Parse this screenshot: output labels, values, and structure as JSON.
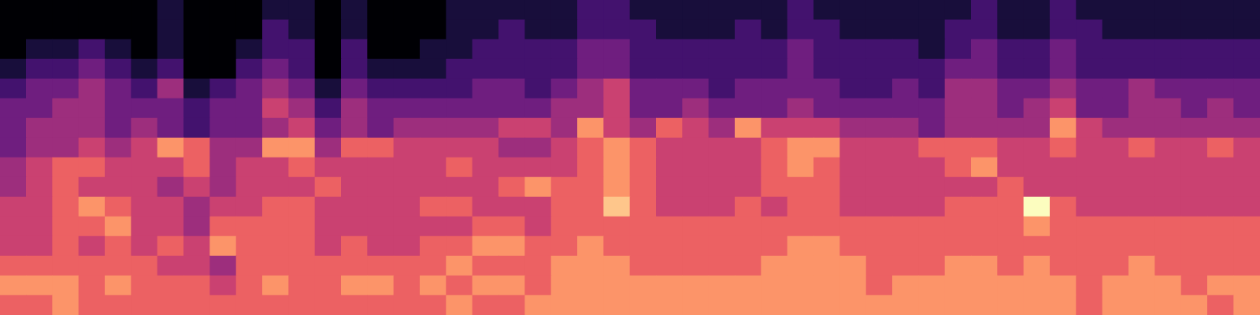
{
  "chart_data": {
    "type": "heatmap",
    "tick_labels": false,
    "grid": false,
    "zlim": [
      0,
      9
    ],
    "cells": [
      [
        0,
        0,
        0,
        0,
        0,
        0,
        1,
        0,
        0,
        0,
        1,
        1,
        0,
        1,
        0,
        0,
        0,
        1,
        1,
        1,
        1,
        1,
        2,
        2,
        1,
        1,
        1,
        1,
        1,
        1,
        2,
        1,
        1,
        1,
        1,
        1,
        1,
        2,
        1,
        1,
        2,
        1,
        1,
        1,
        1,
        1,
        1,
        1
      ],
      [
        0,
        0,
        0,
        0,
        0,
        0,
        1,
        0,
        0,
        0,
        2,
        1,
        0,
        1,
        0,
        0,
        0,
        1,
        1,
        2,
        1,
        1,
        2,
        2,
        2,
        1,
        1,
        1,
        2,
        1,
        2,
        2,
        1,
        1,
        1,
        1,
        2,
        2,
        1,
        1,
        2,
        2,
        1,
        1,
        1,
        1,
        1,
        1
      ],
      [
        0,
        1,
        1,
        2,
        1,
        0,
        1,
        0,
        0,
        1,
        2,
        2,
        0,
        2,
        0,
        0,
        1,
        1,
        2,
        2,
        2,
        2,
        3,
        3,
        2,
        2,
        2,
        2,
        2,
        2,
        3,
        2,
        2,
        2,
        2,
        1,
        2,
        3,
        2,
        2,
        3,
        2,
        2,
        2,
        2,
        2,
        2,
        2
      ],
      [
        1,
        2,
        2,
        3,
        2,
        1,
        2,
        0,
        0,
        2,
        3,
        2,
        0,
        2,
        1,
        1,
        1,
        2,
        2,
        2,
        2,
        2,
        3,
        3,
        2,
        2,
        2,
        2,
        2,
        2,
        3,
        2,
        2,
        2,
        2,
        2,
        3,
        3,
        2,
        2,
        3,
        2,
        2,
        2,
        2,
        2,
        2,
        2
      ],
      [
        2,
        3,
        3,
        4,
        3,
        2,
        4,
        1,
        2,
        3,
        4,
        3,
        1,
        3,
        2,
        2,
        2,
        2,
        3,
        3,
        2,
        3,
        4,
        5,
        3,
        3,
        3,
        2,
        3,
        3,
        3,
        3,
        2,
        2,
        3,
        2,
        4,
        4,
        3,
        3,
        4,
        3,
        3,
        4,
        3,
        3,
        3,
        3
      ],
      [
        3,
        3,
        4,
        4,
        3,
        3,
        3,
        2,
        3,
        3,
        5,
        4,
        2,
        4,
        3,
        3,
        3,
        3,
        3,
        3,
        3,
        4,
        4,
        5,
        3,
        3,
        4,
        3,
        3,
        3,
        4,
        3,
        3,
        3,
        3,
        3,
        4,
        4,
        3,
        4,
        5,
        3,
        3,
        4,
        4,
        3,
        4,
        3
      ],
      [
        3,
        4,
        4,
        4,
        3,
        4,
        3,
        2,
        3,
        3,
        4,
        5,
        3,
        4,
        3,
        4,
        4,
        4,
        4,
        5,
        5,
        4,
        7,
        5,
        4,
        6,
        5,
        4,
        7,
        5,
        5,
        5,
        4,
        4,
        4,
        3,
        4,
        4,
        4,
        4,
        7,
        5,
        4,
        4,
        4,
        4,
        4,
        4
      ],
      [
        3,
        4,
        4,
        5,
        4,
        5,
        7,
        6,
        4,
        4,
        7,
        7,
        4,
        6,
        6,
        5,
        5,
        5,
        5,
        4,
        4,
        5,
        6,
        7,
        6,
        5,
        5,
        5,
        5,
        6,
        7,
        7,
        5,
        5,
        5,
        6,
        6,
        6,
        5,
        5,
        6,
        5,
        5,
        6,
        5,
        5,
        6,
        5
      ],
      [
        4,
        5,
        6,
        6,
        5,
        5,
        5,
        6,
        4,
        5,
        5,
        6,
        5,
        5,
        5,
        5,
        5,
        6,
        5,
        5,
        5,
        5,
        6,
        7,
        6,
        5,
        5,
        5,
        5,
        6,
        7,
        6,
        5,
        5,
        5,
        5,
        6,
        7,
        5,
        5,
        5,
        5,
        5,
        5,
        5,
        5,
        5,
        5
      ],
      [
        4,
        5,
        6,
        5,
        5,
        5,
        4,
        5,
        4,
        5,
        5,
        5,
        6,
        5,
        5,
        5,
        5,
        5,
        5,
        6,
        7,
        6,
        6,
        7,
        6,
        5,
        5,
        5,
        5,
        6,
        6,
        6,
        5,
        5,
        5,
        5,
        5,
        5,
        6,
        5,
        5,
        5,
        5,
        5,
        5,
        5,
        5,
        5
      ],
      [
        5,
        5,
        6,
        7,
        6,
        5,
        5,
        4,
        5,
        5,
        6,
        6,
        5,
        5,
        5,
        5,
        6,
        6,
        5,
        5,
        5,
        6,
        6,
        8,
        6,
        5,
        5,
        5,
        6,
        5,
        6,
        6,
        5,
        5,
        5,
        5,
        6,
        6,
        6,
        9,
        6,
        5,
        5,
        5,
        5,
        5,
        5,
        5
      ],
      [
        5,
        5,
        6,
        6,
        7,
        5,
        5,
        4,
        6,
        6,
        6,
        6,
        5,
        5,
        5,
        5,
        5,
        5,
        6,
        6,
        5,
        6,
        6,
        6,
        6,
        6,
        6,
        6,
        6,
        6,
        6,
        6,
        6,
        6,
        6,
        6,
        6,
        6,
        6,
        7,
        6,
        6,
        6,
        6,
        6,
        6,
        6,
        6
      ],
      [
        5,
        5,
        6,
        5,
        6,
        5,
        6,
        5,
        7,
        6,
        6,
        6,
        5,
        6,
        5,
        5,
        6,
        6,
        7,
        7,
        6,
        6,
        7,
        6,
        6,
        6,
        6,
        6,
        6,
        6,
        7,
        7,
        6,
        6,
        6,
        6,
        6,
        6,
        6,
        6,
        6,
        6,
        6,
        6,
        6,
        6,
        6,
        6
      ],
      [
        6,
        6,
        6,
        6,
        6,
        6,
        5,
        5,
        4,
        6,
        6,
        6,
        6,
        6,
        6,
        6,
        6,
        7,
        6,
        6,
        6,
        7,
        7,
        7,
        6,
        6,
        6,
        6,
        6,
        7,
        7,
        7,
        7,
        6,
        6,
        6,
        7,
        7,
        6,
        7,
        6,
        6,
        6,
        7,
        6,
        6,
        6,
        6
      ],
      [
        7,
        7,
        7,
        6,
        7,
        6,
        6,
        6,
        5,
        6,
        7,
        6,
        6,
        7,
        7,
        6,
        7,
        6,
        7,
        7,
        6,
        7,
        7,
        7,
        7,
        7,
        7,
        7,
        7,
        7,
        7,
        7,
        7,
        6,
        7,
        7,
        7,
        7,
        7,
        7,
        7,
        6,
        7,
        7,
        7,
        6,
        7,
        7
      ],
      [
        6,
        6,
        7,
        6,
        6,
        6,
        6,
        6,
        6,
        6,
        6,
        6,
        6,
        6,
        6,
        6,
        6,
        7,
        6,
        6,
        7,
        7,
        7,
        7,
        7,
        7,
        7,
        7,
        7,
        7,
        7,
        7,
        7,
        7,
        7,
        7,
        7,
        7,
        7,
        7,
        7,
        6,
        7,
        7,
        7,
        7,
        6,
        7
      ]
    ]
  }
}
